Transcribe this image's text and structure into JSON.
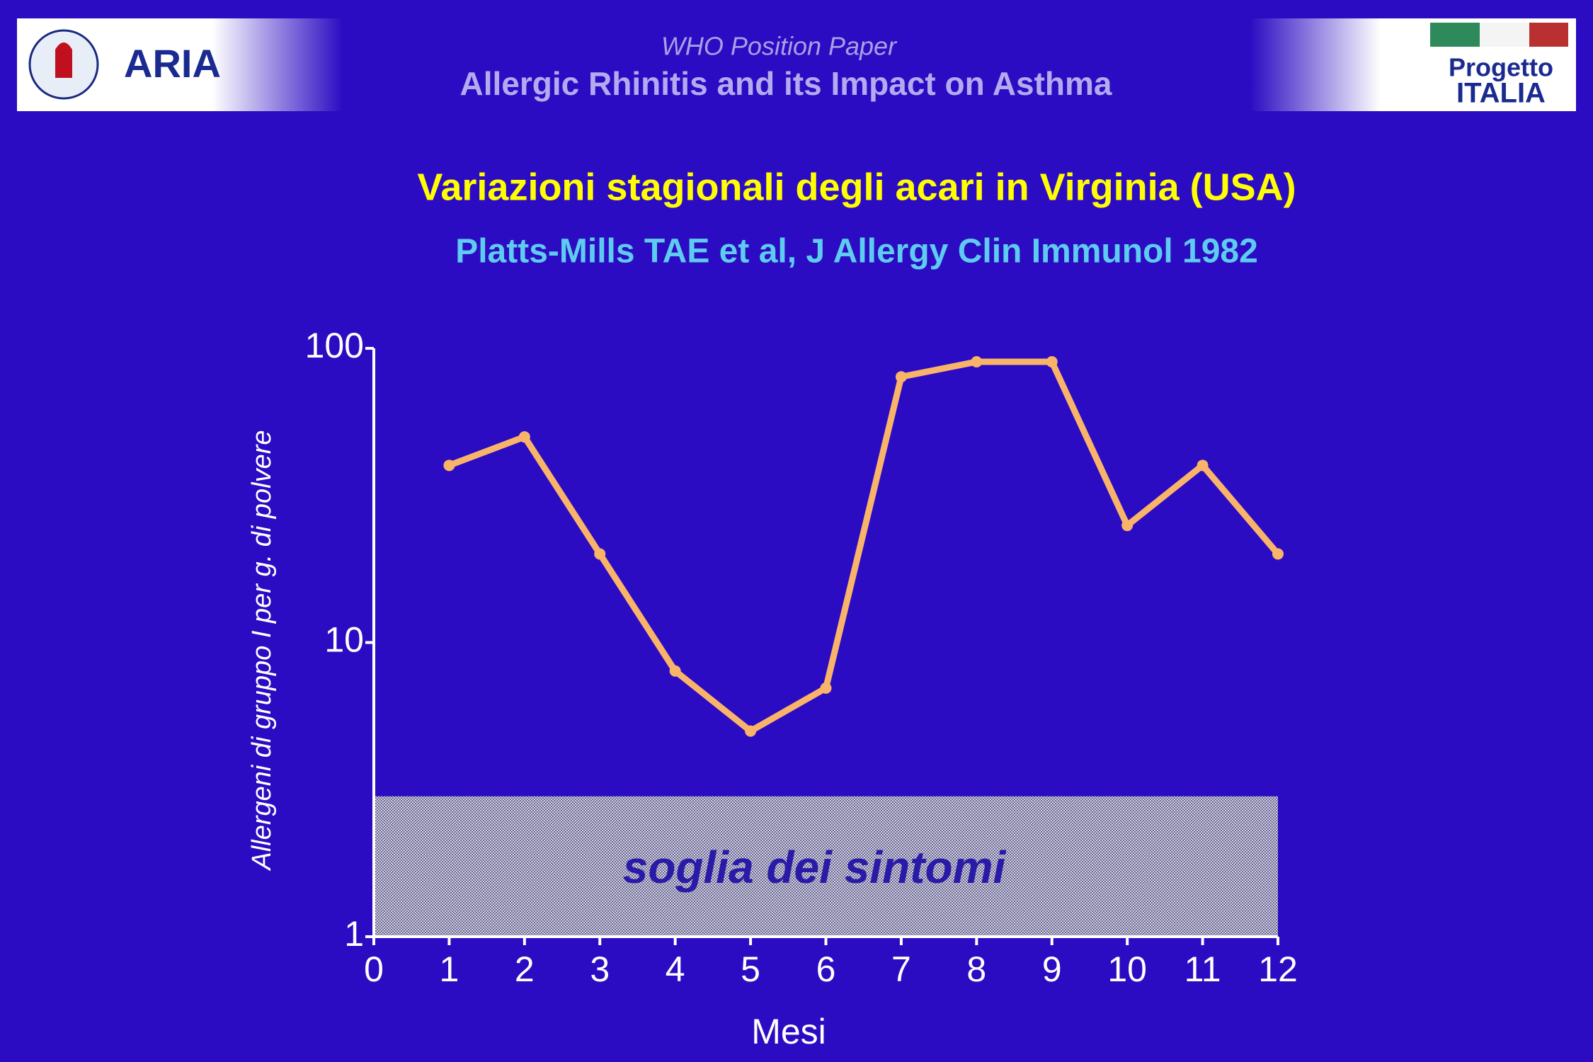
{
  "header": {
    "logo": "ARIA",
    "kicker": "WHO Position Paper",
    "title": "Allergic Rhinitis and its Impact on Asthma",
    "badge_line1": "Progetto",
    "badge_line2": "ITALIA"
  },
  "chart_data": {
    "type": "line",
    "title": "Variazioni stagionali degli acari in Virginia (USA)",
    "subtitle": "Platts-Mills TAE et al, J Allergy Clin Immunol 1982",
    "x_label": "Mesi",
    "y_label": "Allergeni di gruppo I per g. di polvere",
    "x": [
      1,
      2,
      3,
      4,
      5,
      6,
      7,
      8,
      9,
      10,
      11,
      12
    ],
    "values": [
      40,
      50,
      20,
      8,
      5,
      7,
      80,
      90,
      90,
      25,
      40,
      20
    ],
    "color": "#f9b46a",
    "xlim": [
      0,
      12
    ],
    "xticks": [
      0,
      1,
      2,
      3,
      4,
      5,
      6,
      7,
      8,
      9,
      10,
      11,
      12
    ],
    "ylim": [
      1,
      100
    ],
    "yticks": [
      1,
      10,
      100
    ],
    "log_scale": true,
    "threshold": {
      "label": "soglia dei sintomi",
      "range": [
        1,
        3
      ]
    }
  }
}
